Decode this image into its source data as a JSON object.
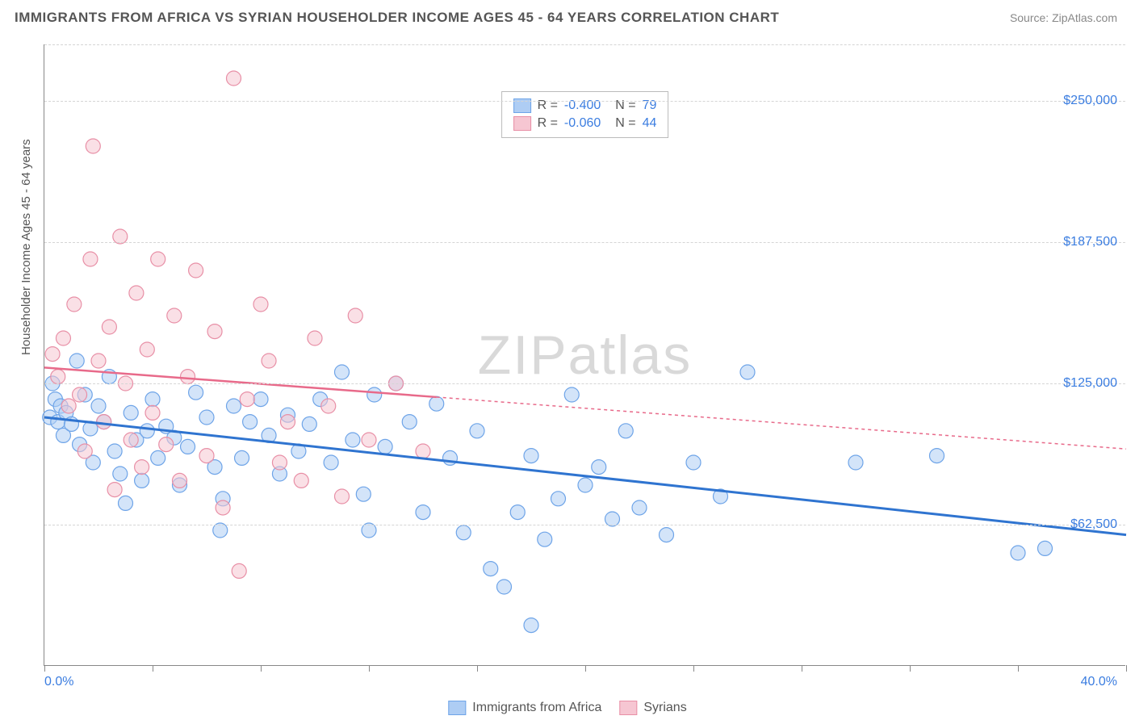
{
  "title": "IMMIGRANTS FROM AFRICA VS SYRIAN HOUSEHOLDER INCOME AGES 45 - 64 YEARS CORRELATION CHART",
  "source": "Source: ZipAtlas.com",
  "ylabel": "Householder Income Ages 45 - 64 years",
  "watermark": {
    "bold": "ZIP",
    "thin": "atlas"
  },
  "chart": {
    "type": "scatter",
    "xlim": [
      0,
      40
    ],
    "ylim": [
      0,
      275000
    ],
    "x_start_label": "0.0%",
    "x_end_label": "40.0%",
    "x_ticks": [
      0,
      4,
      8,
      12,
      16,
      20,
      24,
      28,
      32,
      36,
      40
    ],
    "y_gridlines": [
      62500,
      125000,
      187500,
      250000,
      275000
    ],
    "y_tick_labels": [
      "$62,500",
      "$125,000",
      "$187,500",
      "$250,000"
    ],
    "background_color": "#ffffff",
    "grid_color": "#d5d5d5",
    "axis_color": "#888888",
    "label_color": "#3b7de0",
    "marker_radius": 9,
    "marker_opacity": 0.55,
    "series": [
      {
        "id": "africa",
        "label": "Immigrants from Africa",
        "fill": "#aecdf4",
        "stroke": "#6ea4e8",
        "line_color": "#2f74d0",
        "line_width": 3,
        "line_dash": "none",
        "r": "-0.400",
        "n": "79",
        "trend": {
          "x1": 0,
          "y1": 110000,
          "x2": 40,
          "y2": 58000
        },
        "points": [
          [
            0.2,
            110000
          ],
          [
            0.3,
            125000
          ],
          [
            0.4,
            118000
          ],
          [
            0.5,
            108000
          ],
          [
            0.6,
            115000
          ],
          [
            0.7,
            102000
          ],
          [
            0.8,
            112000
          ],
          [
            1.0,
            107000
          ],
          [
            1.2,
            135000
          ],
          [
            1.3,
            98000
          ],
          [
            1.5,
            120000
          ],
          [
            1.7,
            105000
          ],
          [
            1.8,
            90000
          ],
          [
            2.0,
            115000
          ],
          [
            2.2,
            108000
          ],
          [
            2.4,
            128000
          ],
          [
            2.6,
            95000
          ],
          [
            2.8,
            85000
          ],
          [
            3.0,
            72000
          ],
          [
            3.2,
            112000
          ],
          [
            3.4,
            100000
          ],
          [
            3.6,
            82000
          ],
          [
            3.8,
            104000
          ],
          [
            4.0,
            118000
          ],
          [
            4.2,
            92000
          ],
          [
            4.5,
            106000
          ],
          [
            4.8,
            101000
          ],
          [
            5.0,
            80000
          ],
          [
            5.3,
            97000
          ],
          [
            5.6,
            121000
          ],
          [
            6.0,
            110000
          ],
          [
            6.3,
            88000
          ],
          [
            6.6,
            74000
          ],
          [
            7.0,
            115000
          ],
          [
            7.3,
            92000
          ],
          [
            7.6,
            108000
          ],
          [
            8.0,
            118000
          ],
          [
            8.3,
            102000
          ],
          [
            8.7,
            85000
          ],
          [
            9.0,
            111000
          ],
          [
            9.4,
            95000
          ],
          [
            9.8,
            107000
          ],
          [
            10.2,
            118000
          ],
          [
            10.6,
            90000
          ],
          [
            11.0,
            130000
          ],
          [
            11.4,
            100000
          ],
          [
            11.8,
            76000
          ],
          [
            12.2,
            120000
          ],
          [
            12.6,
            97000
          ],
          [
            13.0,
            125000
          ],
          [
            13.5,
            108000
          ],
          [
            14.0,
            68000
          ],
          [
            14.5,
            116000
          ],
          [
            15.0,
            92000
          ],
          [
            15.5,
            59000
          ],
          [
            16.0,
            104000
          ],
          [
            16.5,
            43000
          ],
          [
            17.0,
            35000
          ],
          [
            17.5,
            68000
          ],
          [
            18.0,
            93000
          ],
          [
            18.5,
            56000
          ],
          [
            19.0,
            74000
          ],
          [
            19.5,
            120000
          ],
          [
            20.0,
            80000
          ],
          [
            20.5,
            88000
          ],
          [
            21.0,
            65000
          ],
          [
            21.5,
            104000
          ],
          [
            22.0,
            70000
          ],
          [
            23.0,
            58000
          ],
          [
            24.0,
            90000
          ],
          [
            25.0,
            75000
          ],
          [
            26.0,
            130000
          ],
          [
            18.0,
            18000
          ],
          [
            30.0,
            90000
          ],
          [
            33.0,
            93000
          ],
          [
            36.0,
            50000
          ],
          [
            37.0,
            52000
          ],
          [
            12.0,
            60000
          ],
          [
            6.5,
            60000
          ]
        ]
      },
      {
        "id": "syrians",
        "label": "Syrians",
        "fill": "#f6c6d2",
        "stroke": "#e88fa6",
        "line_color": "#e86a8a",
        "line_width": 2.5,
        "line_dash": "4,4",
        "line_solid_until_x": 14.5,
        "r": "-0.060",
        "n": "44",
        "trend": {
          "x1": 0,
          "y1": 132000,
          "x2": 40,
          "y2": 96000
        },
        "points": [
          [
            0.3,
            138000
          ],
          [
            0.5,
            128000
          ],
          [
            0.7,
            145000
          ],
          [
            0.9,
            115000
          ],
          [
            1.1,
            160000
          ],
          [
            1.3,
            120000
          ],
          [
            1.5,
            95000
          ],
          [
            1.7,
            180000
          ],
          [
            1.8,
            230000
          ],
          [
            2.0,
            135000
          ],
          [
            2.2,
            108000
          ],
          [
            2.4,
            150000
          ],
          [
            2.6,
            78000
          ],
          [
            2.8,
            190000
          ],
          [
            3.0,
            125000
          ],
          [
            3.2,
            100000
          ],
          [
            3.4,
            165000
          ],
          [
            3.6,
            88000
          ],
          [
            3.8,
            140000
          ],
          [
            4.0,
            112000
          ],
          [
            4.2,
            180000
          ],
          [
            4.5,
            98000
          ],
          [
            4.8,
            155000
          ],
          [
            5.0,
            82000
          ],
          [
            5.3,
            128000
          ],
          [
            5.6,
            175000
          ],
          [
            6.0,
            93000
          ],
          [
            6.3,
            148000
          ],
          [
            6.6,
            70000
          ],
          [
            7.0,
            260000
          ],
          [
            7.2,
            42000
          ],
          [
            7.5,
            118000
          ],
          [
            8.0,
            160000
          ],
          [
            8.3,
            135000
          ],
          [
            8.7,
            90000
          ],
          [
            9.0,
            108000
          ],
          [
            9.5,
            82000
          ],
          [
            10.0,
            145000
          ],
          [
            10.5,
            115000
          ],
          [
            11.0,
            75000
          ],
          [
            11.5,
            155000
          ],
          [
            12.0,
            100000
          ],
          [
            13.0,
            125000
          ],
          [
            14.0,
            95000
          ]
        ]
      }
    ]
  },
  "legend_bottom": [
    {
      "id": "africa",
      "label": "Immigrants from Africa"
    },
    {
      "id": "syrians",
      "label": "Syrians"
    }
  ]
}
